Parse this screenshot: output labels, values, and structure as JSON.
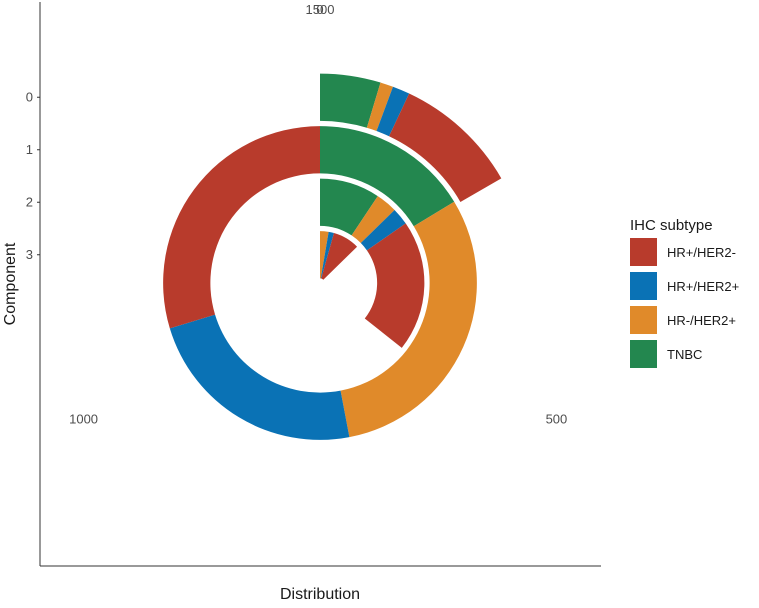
{
  "chart_data": {
    "type": "radial-bar",
    "xlabel": "Distribution",
    "ylabel": "Component",
    "theta_tick_labels": [
      "0",
      "500",
      "1000",
      "1500"
    ],
    "theta_ticks": [
      0,
      500,
      1000,
      1500
    ],
    "theta_max": 1500,
    "y_tick_labels": [
      "0",
      "1",
      "2",
      "3"
    ],
    "y_ticks": [
      0,
      1,
      2,
      3
    ],
    "legend": {
      "title": "IHC subtype",
      "position": "right",
      "entries": [
        {
          "label": "HR+/HER2-",
          "color": "#B83B2C"
        },
        {
          "label": "HR+/HER2+",
          "color": "#0A72B5"
        },
        {
          "label": "HR-/HER2+",
          "color": "#E08A2A"
        },
        {
          "label": "TNBC",
          "color": "#23874F"
        }
      ]
    },
    "series": [
      {
        "component": 0,
        "values": [
          {
            "subtype": "TNBC",
            "value": 70
          },
          {
            "subtype": "HR-/HER2+",
            "value": 15
          },
          {
            "subtype": "HR+/HER2+",
            "value": 20
          },
          {
            "subtype": "HR+/HER2-",
            "value": 145
          }
        ]
      },
      {
        "component": 1,
        "values": [
          {
            "subtype": "TNBC",
            "value": 245
          },
          {
            "subtype": "HR-/HER2+",
            "value": 460
          },
          {
            "subtype": "HR+/HER2+",
            "value": 350
          },
          {
            "subtype": "HR+/HER2-",
            "value": 445
          }
        ]
      },
      {
        "component": 2,
        "values": [
          {
            "subtype": "TNBC",
            "value": 140
          },
          {
            "subtype": "HR-/HER2+",
            "value": 50
          },
          {
            "subtype": "HR+/HER2+",
            "value": 40
          },
          {
            "subtype": "HR+/HER2-",
            "value": 305
          }
        ]
      },
      {
        "component": 3,
        "values": [
          {
            "subtype": "HR-/HER2+",
            "value": 40
          },
          {
            "subtype": "HR+/HER2+",
            "value": 25
          },
          {
            "subtype": "HR+/HER2-",
            "value": 125
          }
        ]
      }
    ]
  }
}
